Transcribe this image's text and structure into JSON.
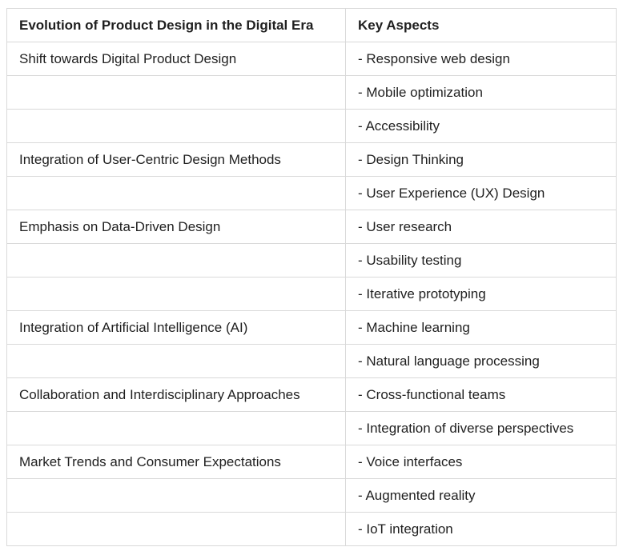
{
  "table": {
    "header": [
      "Evolution of Product Design in the Digital Era",
      "Key Aspects"
    ],
    "rows": [
      [
        "Shift towards Digital Product Design",
        "- Responsive web design"
      ],
      [
        null,
        "- Mobile optimization"
      ],
      [
        null,
        "- Accessibility"
      ],
      [
        "Integration of User-Centric Design Methods",
        "- Design Thinking"
      ],
      [
        null,
        "- User Experience (UX) Design"
      ],
      [
        "Emphasis on Data-Driven Design",
        "- User research"
      ],
      [
        null,
        "- Usability testing"
      ],
      [
        null,
        "- Iterative prototyping"
      ],
      [
        "Integration of Artificial Intelligence (AI)",
        "- Machine learning"
      ],
      [
        null,
        "- Natural language processing"
      ],
      [
        "Collaboration and Interdisciplinary Approaches",
        "- Cross-functional teams"
      ],
      [
        null,
        "- Integration of diverse perspectives"
      ],
      [
        "Market Trends and Consumer Expectations",
        "- Voice interfaces"
      ],
      [
        null,
        "- Augmented reality"
      ],
      [
        null,
        "- IoT integration"
      ]
    ]
  }
}
